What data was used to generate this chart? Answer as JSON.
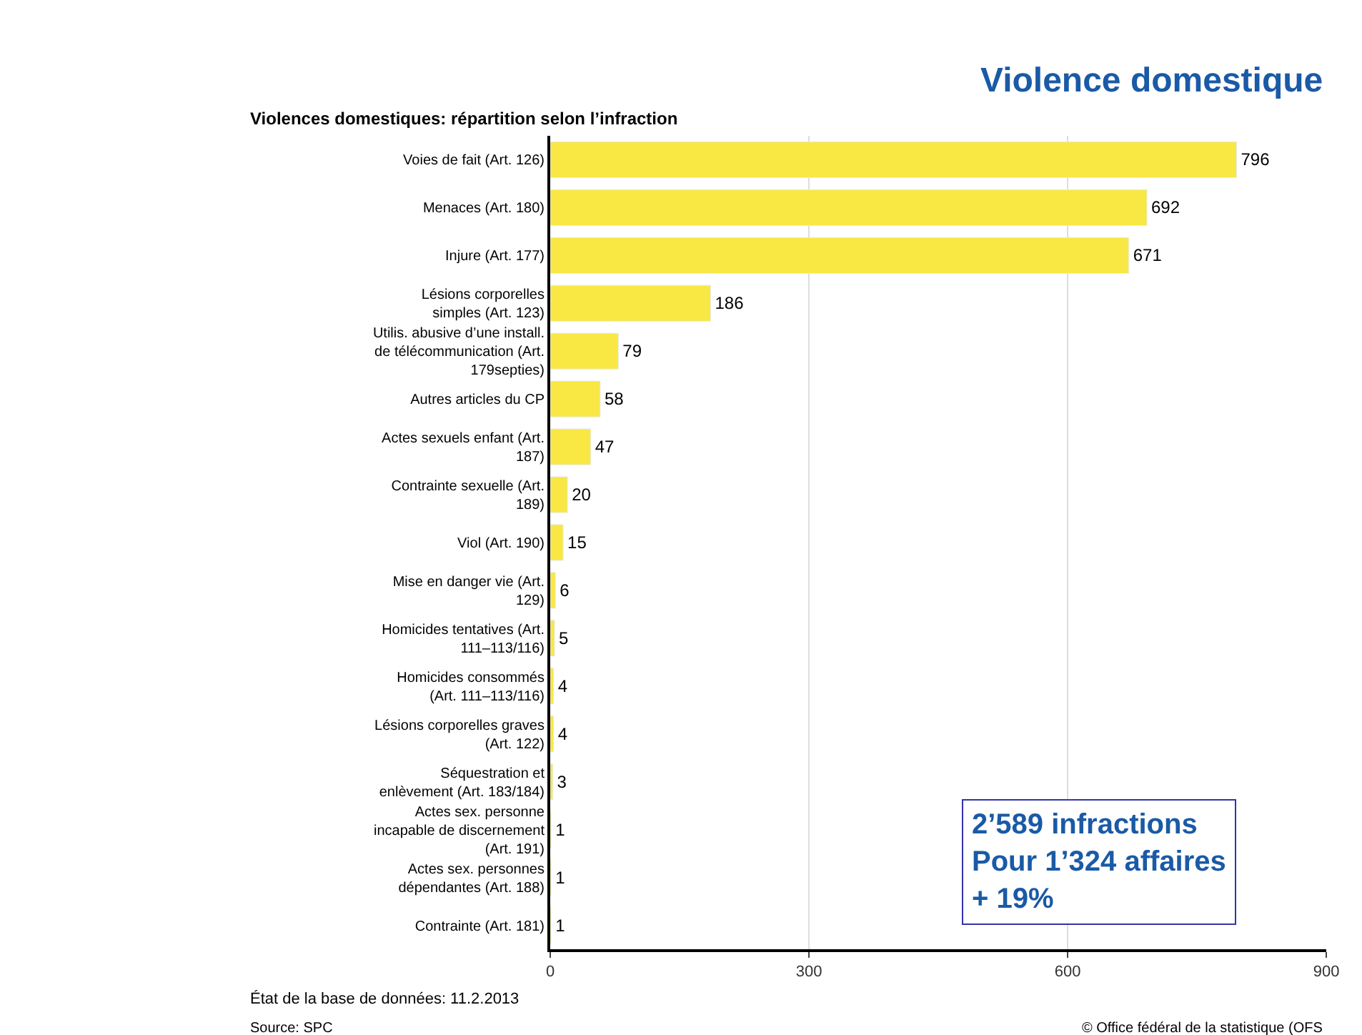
{
  "chart_data": {
    "type": "bar",
    "orientation": "horizontal",
    "title": "Violence domestique",
    "subtitle": "Violences domestiques: répartition selon l’infraction",
    "categories": [
      "Voies de fait (Art. 126)",
      "Menaces (Art. 180)",
      "Injure (Art. 177)",
      "Lésions corporelles\nsimples (Art. 123)",
      "Utilis. abusive d’une install.\nde télécommunication (Art.\n179septies)",
      "Autres articles du CP",
      "Actes sexuels enfant (Art.\n187)",
      "Contrainte sexuelle (Art.\n189)",
      "Viol (Art. 190)",
      "Mise en danger vie (Art.\n129)",
      "Homicides tentatives (Art.\n111–113/116)",
      "Homicides consommés\n(Art. 111–113/116)",
      "Lésions corporelles graves\n(Art. 122)",
      "Séquestration et\nenlèvement (Art. 183/184)",
      "Actes sex. personne\nincapable de discernement\n(Art. 191)",
      "Actes sex. personnes\ndépendantes (Art. 188)",
      "Contrainte (Art. 181)"
    ],
    "values": [
      796,
      692,
      671,
      186,
      79,
      58,
      47,
      20,
      15,
      6,
      5,
      4,
      4,
      3,
      1,
      1,
      1
    ],
    "color": "#f9e744",
    "data_labels": true,
    "xlim": [
      0,
      900
    ],
    "xticks": [
      0,
      300,
      600,
      900
    ],
    "grid": "x",
    "annotations": [
      "2’589 infractions\nPour 1’324 affaires\n+ 19%",
      "État de la base de données: 11.2.2013",
      "Source: SPC",
      "© Office fédéral de la statistique (OFS"
    ]
  }
}
